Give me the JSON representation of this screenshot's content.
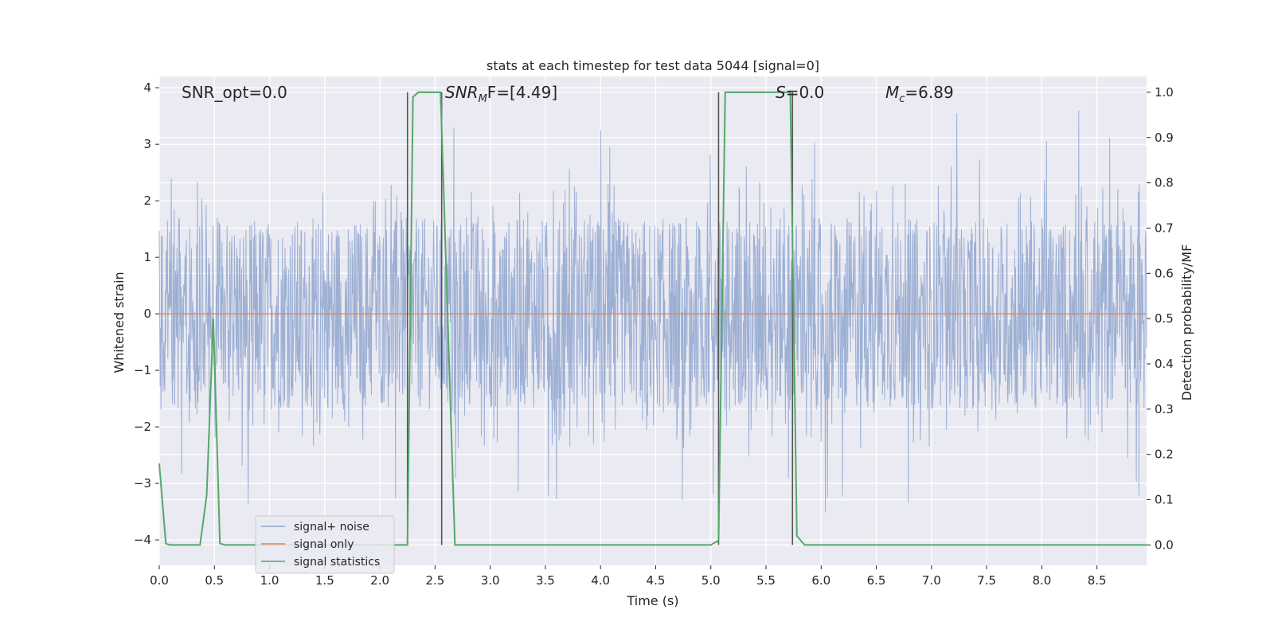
{
  "chart_data": {
    "type": "line",
    "title": "stats at each timestep for test data 5044 [signal=0]",
    "xlabel": "Time (s)",
    "ylabel_left": "Whitened strain",
    "ylabel_right": "Detection probability/MF",
    "xlim": [
      0.0,
      8.95
    ],
    "ylim_left": [
      -4.45,
      4.2
    ],
    "ylim_right": [
      -0.045,
      1.035
    ],
    "x_ticks": [
      "0.0",
      "0.5",
      "1.0",
      "1.5",
      "2.0",
      "2.5",
      "3.0",
      "3.5",
      "4.0",
      "4.5",
      "5.0",
      "5.5",
      "6.0",
      "6.5",
      "7.0",
      "7.5",
      "8.0",
      "8.5"
    ],
    "y_ticks_left": [
      "4",
      "3",
      "2",
      "1",
      "0",
      "−1",
      "−2",
      "−3",
      "−4"
    ],
    "y_ticks_right": [
      "1.0",
      "0.9",
      "0.8",
      "0.7",
      "0.6",
      "0.5",
      "0.4",
      "0.3",
      "0.2",
      "0.1",
      "0.0"
    ],
    "grid": true,
    "legend_position": "lower-left",
    "annotations": {
      "snr_opt": "SNR_opt=0.0",
      "snr_mf": {
        "main": "SNR",
        "sub": "M",
        "rest": "F=[4.49]"
      },
      "s": {
        "var": "S",
        "rest": "=0.0"
      },
      "mc": {
        "main": "M",
        "sub": "c",
        "rest": "=6.89"
      }
    },
    "vertical_markers": [
      2.25,
      2.56,
      5.07,
      5.74
    ],
    "series": [
      {
        "name": "signal+ noise",
        "color": "#8fa6cf",
        "axis": "left",
        "description_values": {
          "typical_band": [
            -1.7,
            1.7
          ],
          "max_peak": 3.7,
          "min_peak": -3.8
        }
      },
      {
        "name": "signal only",
        "color": "#dd8452",
        "axis": "left",
        "values": {
          "x": [
            0.0,
            8.95
          ],
          "y": [
            0.0,
            0.0
          ]
        }
      },
      {
        "name": "signal statistics",
        "color": "#55a868",
        "axis": "right",
        "values": {
          "x": [
            0.0,
            0.06,
            0.1,
            0.37,
            0.43,
            0.49,
            0.55,
            0.6,
            2.25,
            2.3,
            2.35,
            2.55,
            2.68,
            5.0,
            5.07,
            5.13,
            5.72,
            5.78,
            5.85,
            8.95
          ],
          "y": [
            0.18,
            0.003,
            0.0,
            0.0,
            0.11,
            0.5,
            0.003,
            0.0,
            0.0,
            0.99,
            1.0,
            1.0,
            0.0,
            0.0,
            0.01,
            1.0,
            1.0,
            0.02,
            0.0,
            0.0
          ]
        }
      }
    ]
  }
}
